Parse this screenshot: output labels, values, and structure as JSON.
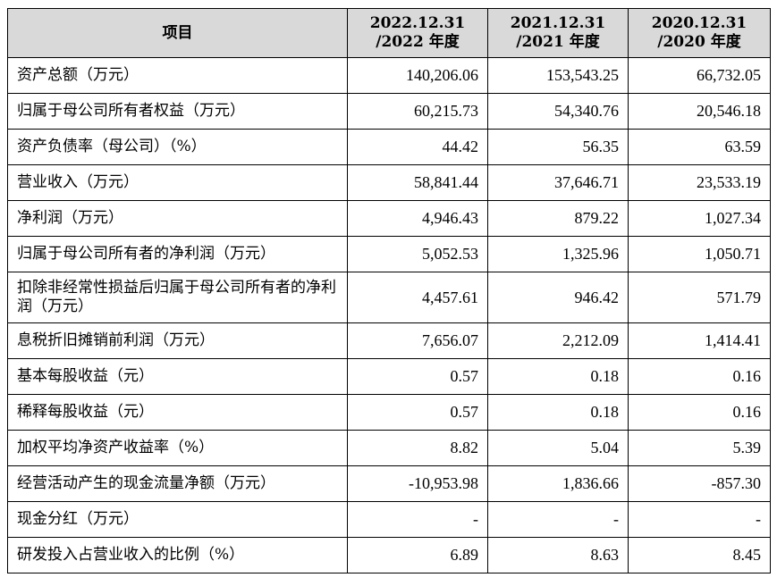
{
  "header": {
    "item": "项目",
    "col1_line1": "2022.12.31",
    "col1_line2": "/2022 年度",
    "col2_line1": "2021.12.31",
    "col2_line2": "/2021 年度",
    "col3_line1": "2020.12.31",
    "col3_line2": "/2020 年度"
  },
  "rows": [
    {
      "label": "资产总额（万元）",
      "v2022": "140,206.06",
      "v2021": "153,543.25",
      "v2020": "66,732.05"
    },
    {
      "label": "归属于母公司所有者权益（万元）",
      "v2022": "60,215.73",
      "v2021": "54,340.76",
      "v2020": "20,546.18"
    },
    {
      "label": "资产负债率（母公司）（%）",
      "v2022": "44.42",
      "v2021": "56.35",
      "v2020": "63.59"
    },
    {
      "label": "营业收入（万元）",
      "v2022": "58,841.44",
      "v2021": "37,646.71",
      "v2020": "23,533.19"
    },
    {
      "label": "净利润（万元）",
      "v2022": "4,946.43",
      "v2021": "879.22",
      "v2020": "1,027.34"
    },
    {
      "label": "归属于母公司所有者的净利润（万元）",
      "v2022": "5,052.53",
      "v2021": "1,325.96",
      "v2020": "1,050.71"
    },
    {
      "label": "扣除非经常性损益后归属于母公司所有者的净利润（万元）",
      "v2022": "4,457.61",
      "v2021": "946.42",
      "v2020": "571.79"
    },
    {
      "label": "息税折旧摊销前利润（万元）",
      "v2022": "7,656.07",
      "v2021": "2,212.09",
      "v2020": "1,414.41"
    },
    {
      "label": "基本每股收益（元）",
      "v2022": "0.57",
      "v2021": "0.18",
      "v2020": "0.16"
    },
    {
      "label": "稀释每股收益（元）",
      "v2022": "0.57",
      "v2021": "0.18",
      "v2020": "0.16"
    },
    {
      "label": "加权平均净资产收益率（%）",
      "v2022": "8.82",
      "v2021": "5.04",
      "v2020": "5.39"
    },
    {
      "label": "经营活动产生的现金流量净额（万元）",
      "v2022": "-10,953.98",
      "v2021": "1,836.66",
      "v2020": "-857.30"
    },
    {
      "label": "现金分红（万元）",
      "v2022": "-",
      "v2021": "-",
      "v2020": "-"
    },
    {
      "label": "研发投入占营业收入的比例（%）",
      "v2022": "6.89",
      "v2021": "8.63",
      "v2020": "8.45"
    }
  ]
}
